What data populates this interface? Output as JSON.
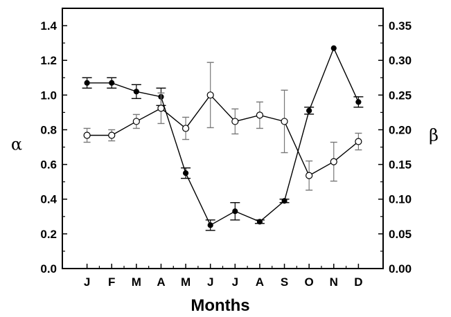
{
  "chart_data": {
    "type": "line",
    "title": "",
    "xlabel": "Months",
    "ylabel_left": "α",
    "ylabel_right": "β",
    "categories": [
      "J",
      "F",
      "M",
      "A",
      "M",
      "J",
      "J",
      "A",
      "S",
      "O",
      "N",
      "D"
    ],
    "y_left": {
      "range": [
        0,
        1.5
      ],
      "ticks": [
        0.0,
        0.2,
        0.4,
        0.6,
        0.8,
        1.0,
        1.2,
        1.4
      ],
      "tick_labels": [
        "0.0",
        "0.2",
        "0.4",
        "0.6",
        "0.8",
        "1.0",
        "1.2",
        "1.4"
      ]
    },
    "y_right": {
      "range": [
        0,
        0.375
      ],
      "ticks": [
        0.0,
        0.05,
        0.1,
        0.15,
        0.2,
        0.25,
        0.3,
        0.35
      ],
      "tick_labels": [
        "0.00",
        "0.05",
        "0.10",
        "0.15",
        "0.20",
        "0.25",
        "0.30",
        "0.35"
      ]
    },
    "grid": false,
    "legend": "none",
    "series": [
      {
        "marker": "filled-circle",
        "axis": "left",
        "color": "#000000",
        "values": [
          1.07,
          1.07,
          1.02,
          0.99,
          0.55,
          0.25,
          0.33,
          0.27,
          0.39,
          0.91,
          1.27,
          0.96
        ],
        "errors": [
          0.03,
          0.03,
          0.04,
          0.05,
          0.03,
          0.03,
          0.05,
          0.01,
          0.01,
          0.02,
          0.0,
          0.03
        ]
      },
      {
        "marker": "open-circle",
        "axis": "right",
        "color": "#000000",
        "values": [
          0.192,
          0.192,
          0.212,
          0.231,
          0.202,
          0.25,
          0.212,
          0.221,
          0.212,
          0.134,
          0.154,
          0.183
        ],
        "errors": [
          0.01,
          0.008,
          0.01,
          0.022,
          0.016,
          0.047,
          0.018,
          0.019,
          0.045,
          0.021,
          0.028,
          0.012
        ]
      }
    ]
  }
}
